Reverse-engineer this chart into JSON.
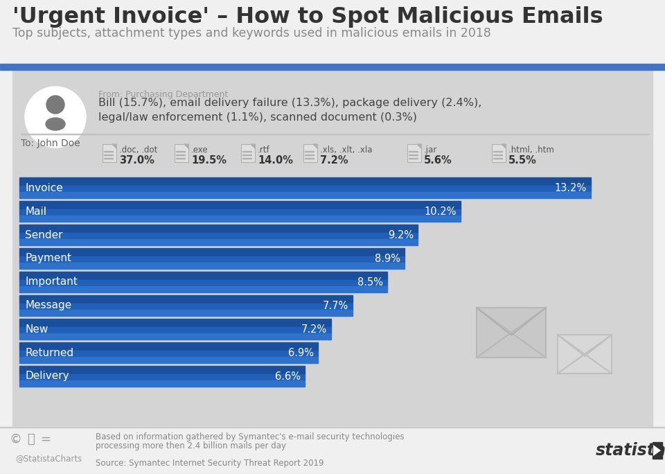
{
  "title": "'Urgent Invoice' – How to Spot Malicious Emails",
  "subtitle": "Top subjects, attachment types and keywords used in malicious emails in 2018",
  "from_label": "From: Purchasing Department",
  "from_text": "Bill (15.7%), email delivery failure (13.3%), package delivery (2.4%),\nlegal/law enforcement (1.1%), scanned document (0.3%)",
  "to_label": "To: John Doe",
  "attachments": [
    {
      "label": ".doc, .dot",
      "value": "37.0%"
    },
    {
      "label": ".exe",
      "value": "19.5%"
    },
    {
      "label": ".rtf",
      "value": "14.0%"
    },
    {
      "label": ".xls, .xlt, .xla",
      "value": "7.2%"
    },
    {
      "label": ".jar",
      "value": "5.6%"
    },
    {
      "label": ".html, .htm",
      "value": "5.5%"
    }
  ],
  "bar_labels": [
    "Invoice",
    "Mail",
    "Sender",
    "Payment",
    "Important",
    "Message",
    "New",
    "Returned",
    "Delivery"
  ],
  "bar_values": [
    13.2,
    10.2,
    9.2,
    8.9,
    8.5,
    7.7,
    7.2,
    6.9,
    6.6
  ],
  "bar_max": 14.5,
  "bg_color": "#f0f0f0",
  "panel_color": "#d4d4d4",
  "blue_stripe_color": "#4472c4",
  "bar_dark": "#1a4f9c",
  "bar_mid": "#2060b8",
  "bar_light": "#2e72cc",
  "white": "#ffffff",
  "avatar_bg": "#ffffff",
  "avatar_color": "#7a7a7a",
  "divider_color": "#c0c0c0",
  "from_label_color": "#999999",
  "from_text_color": "#444444",
  "to_label_color": "#666666",
  "doc_icon_bg": "#e0e0e0",
  "doc_icon_border": "#b0b0b0",
  "doc_line_color": "#b0b0b0",
  "attach_label_color": "#555555",
  "attach_val_color": "#333333",
  "envelope_large_color": "#c8c8c8",
  "envelope_small_color": "#d8d8d8",
  "footer_bg": "#f0f0f0",
  "footer_text_color": "#888888",
  "statista_color": "#333333",
  "title_color": "#333333",
  "subtitle_color": "#888888",
  "footer_line1": "Based on information gathered by Symantec's e-mail security technologies",
  "footer_line2": "processing more then 2.4 billion mails per day",
  "footer_line3": "Source: Symantec Internet Security Threat Report 2019",
  "credits": "@StatistaCharts"
}
